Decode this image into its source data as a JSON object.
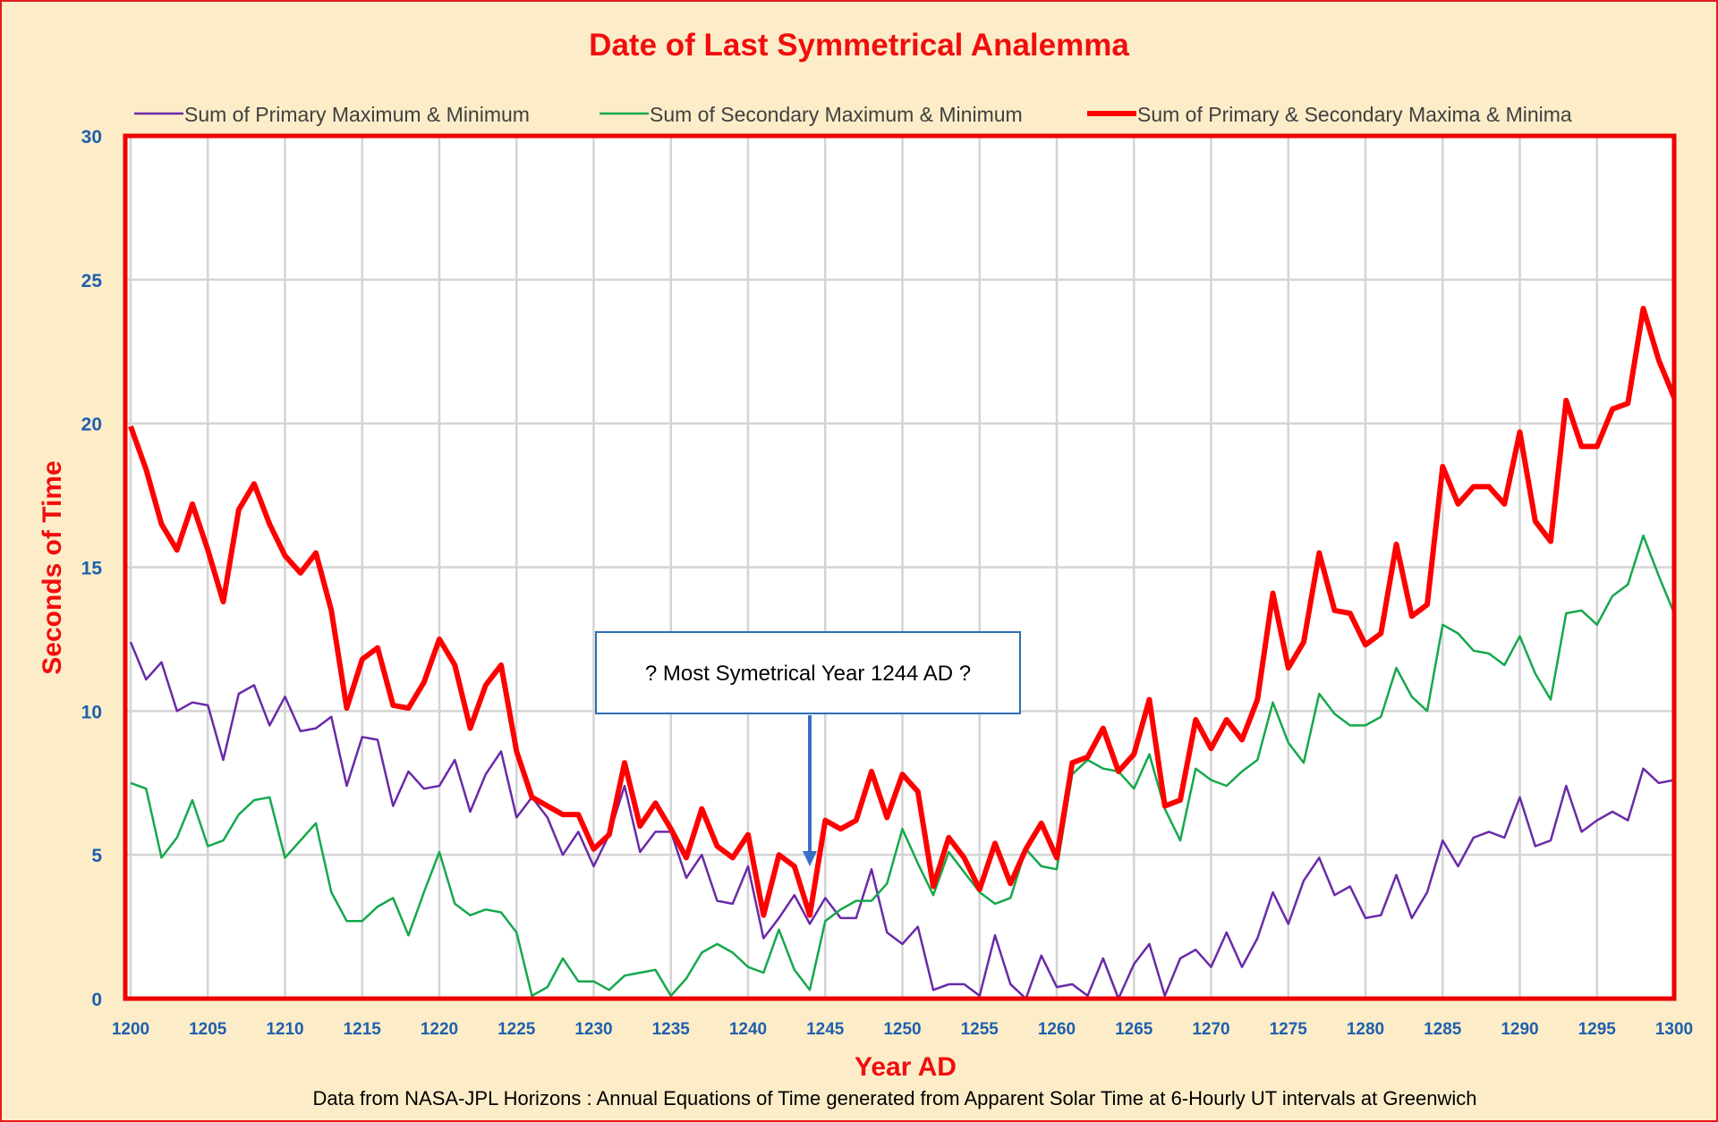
{
  "chart_data": {
    "type": "line",
    "title": "Date of Last Symmetrical Analemma",
    "xlabel": "Year AD",
    "ylabel": "Seconds of Time",
    "footnote": "Data from NASA-JPL Horizons : Annual Equations of Time generated from Apparent Solar Time at 6-Hourly UT intervals at Greenwich",
    "annotation": {
      "text": "? Most Symetrical Year 1244 AD ?",
      "x": 1244,
      "y": 4.6
    },
    "xlim": [
      1200,
      1300
    ],
    "ylim": [
      0,
      30
    ],
    "x_ticks": [
      "1200",
      "1205",
      "1210",
      "1215",
      "1220",
      "1225",
      "1230",
      "1235",
      "1240",
      "1245",
      "1250",
      "1255",
      "1260",
      "1265",
      "1270",
      "1275",
      "1280",
      "1285",
      "1290",
      "1295",
      "1300"
    ],
    "y_ticks": [
      "0",
      "5",
      "10",
      "15",
      "20",
      "25",
      "30"
    ],
    "grid": true,
    "legend_position": "top",
    "x_start": 1200,
    "series": [
      {
        "name": "Sum of Primary Maximum & Minimum",
        "color": "#6a2aa8",
        "values": [
          12.4,
          11.1,
          11.7,
          10.0,
          10.3,
          10.2,
          8.3,
          10.6,
          10.9,
          9.5,
          10.5,
          9.3,
          9.4,
          9.8,
          7.4,
          9.1,
          9.0,
          6.7,
          7.9,
          7.3,
          7.4,
          8.3,
          6.5,
          7.8,
          8.6,
          6.3,
          7.0,
          6.3,
          5.0,
          5.8,
          4.6,
          5.7,
          7.4,
          5.1,
          5.8,
          5.8,
          4.2,
          5.0,
          3.4,
          3.3,
          4.6,
          2.1,
          2.8,
          3.6,
          2.6,
          3.5,
          2.8,
          2.8,
          4.5,
          2.3,
          1.9,
          2.5,
          0.3,
          0.5,
          0.5,
          0.1,
          2.2,
          0.5,
          0.0,
          1.5,
          0.4,
          0.5,
          0.1,
          1.4,
          0.0,
          1.2,
          1.9,
          0.1,
          1.4,
          1.7,
          1.1,
          2.3,
          1.1,
          2.1,
          3.7,
          2.6,
          4.1,
          4.9,
          3.6,
          3.9,
          2.8,
          2.9,
          4.3,
          2.8,
          3.7,
          5.5,
          4.6,
          5.6,
          5.8,
          5.6,
          7.0,
          5.3,
          5.5,
          7.4,
          5.8,
          6.2,
          6.5,
          6.2,
          8.0,
          7.5,
          7.6
        ]
      },
      {
        "name": "Sum of Secondary Maximum & Minimum",
        "color": "#15a84c",
        "values": [
          7.5,
          7.3,
          4.9,
          5.6,
          6.9,
          5.3,
          5.5,
          6.4,
          6.9,
          7.0,
          4.9,
          5.5,
          6.1,
          3.7,
          2.7,
          2.7,
          3.2,
          3.5,
          2.2,
          3.7,
          5.1,
          3.3,
          2.9,
          3.1,
          3.0,
          2.3,
          0.1,
          0.4,
          1.4,
          0.6,
          0.6,
          0.3,
          0.8,
          0.9,
          1.0,
          0.1,
          0.7,
          1.6,
          1.9,
          1.6,
          1.1,
          0.9,
          2.4,
          1.0,
          0.3,
          2.7,
          3.1,
          3.4,
          3.4,
          4.0,
          5.9,
          4.7,
          3.6,
          5.1,
          4.4,
          3.7,
          3.3,
          3.5,
          5.2,
          4.6,
          4.5,
          7.8,
          8.3,
          8.0,
          7.9,
          7.3,
          8.5,
          6.6,
          5.5,
          8.0,
          7.6,
          7.4,
          7.9,
          8.3,
          10.3,
          8.9,
          8.2,
          10.6,
          9.9,
          9.5,
          9.5,
          9.8,
          11.5,
          10.5,
          10.0,
          13.0,
          12.7,
          12.1,
          12.0,
          11.6,
          12.6,
          11.3,
          10.4,
          13.4,
          13.5,
          13.0,
          14.0,
          14.4,
          16.1,
          14.7,
          13.4
        ]
      },
      {
        "name": "Sum of Primary & Secondary Maxima & Minima",
        "color": "#ff0000",
        "values": [
          19.9,
          18.4,
          16.5,
          15.6,
          17.2,
          15.6,
          13.8,
          17.0,
          17.9,
          16.5,
          15.4,
          14.8,
          15.5,
          13.5,
          10.1,
          11.8,
          12.2,
          10.2,
          10.1,
          11.0,
          12.5,
          11.6,
          9.4,
          10.9,
          11.6,
          8.6,
          7.0,
          6.7,
          6.4,
          6.4,
          5.2,
          5.7,
          8.2,
          6.0,
          6.8,
          5.9,
          4.9,
          6.6,
          5.3,
          4.9,
          5.7,
          2.9,
          5.0,
          4.6,
          2.9,
          6.2,
          5.9,
          6.2,
          7.9,
          6.3,
          7.8,
          7.2,
          3.9,
          5.6,
          4.9,
          3.8,
          5.4,
          4.0,
          5.2,
          6.1,
          4.9,
          8.2,
          8.4,
          9.4,
          7.9,
          8.5,
          10.4,
          6.7,
          6.9,
          9.7,
          8.7,
          9.7,
          9.0,
          10.4,
          14.1,
          11.5,
          12.4,
          15.5,
          13.5,
          13.4,
          12.3,
          12.7,
          15.8,
          13.3,
          13.7,
          18.5,
          17.2,
          17.8,
          17.8,
          17.2,
          19.7,
          16.6,
          15.9,
          20.8,
          19.2,
          19.2,
          20.5,
          20.7,
          24.0,
          22.2,
          20.9
        ]
      }
    ]
  }
}
